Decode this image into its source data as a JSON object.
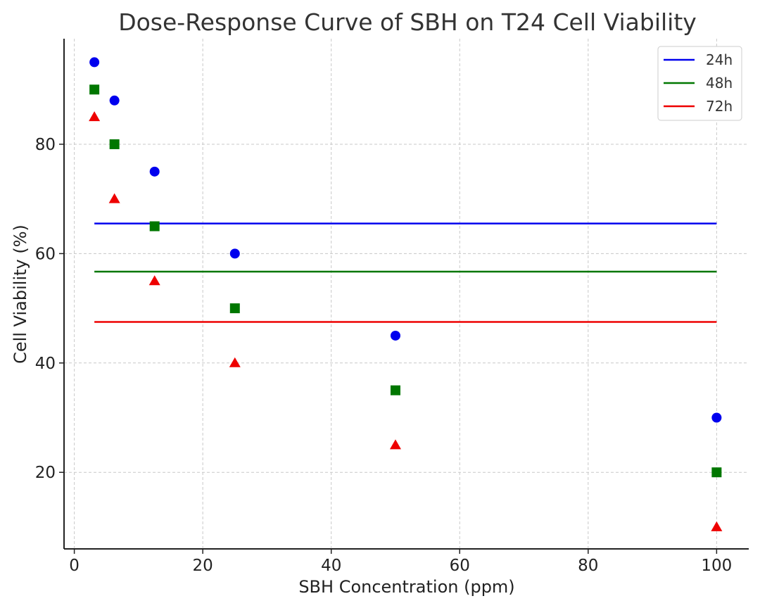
{
  "chart_data": {
    "type": "scatter",
    "title": "Dose-Response Curve of SBH on T24 Cell Viability",
    "xlabel": "SBH Concentration (ppm)",
    "ylabel": "Cell Viability (%)",
    "xlim": [
      -1.6,
      105
    ],
    "ylim": [
      6,
      99.3
    ],
    "xticks": [
      0,
      20,
      40,
      60,
      80,
      100
    ],
    "yticks": [
      20,
      40,
      60,
      80
    ],
    "grid": true,
    "legend_position": "top-right",
    "x": [
      3.125,
      6.25,
      12.5,
      25,
      50,
      100
    ],
    "series": [
      {
        "name": "24h",
        "color": "#0000ee",
        "marker": "circle",
        "values": [
          95,
          88,
          75,
          60,
          45,
          30
        ],
        "mean_line": 65.5
      },
      {
        "name": "48h",
        "color": "#007700",
        "marker": "square",
        "values": [
          90,
          80,
          65,
          50,
          35,
          20
        ],
        "mean_line": 56.7
      },
      {
        "name": "72h",
        "color": "#ee0000",
        "marker": "triangle",
        "values": [
          85,
          70,
          55,
          40,
          25,
          10
        ],
        "mean_line": 47.5
      }
    ]
  }
}
